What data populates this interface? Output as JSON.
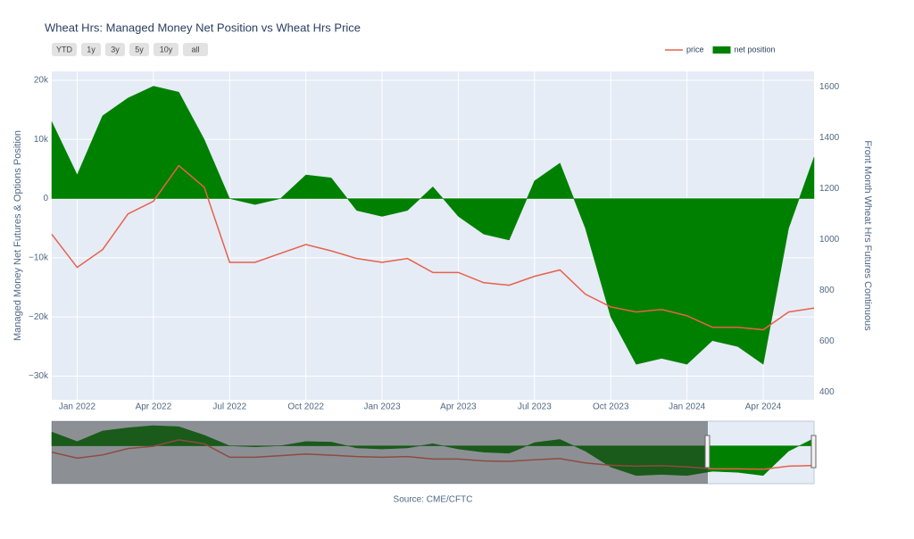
{
  "chart_data": {
    "type": "line_area",
    "title": "Wheat Hrs: Managed Money Net Position vs Wheat Hrs Price",
    "range_buttons": [
      "YTD",
      "1y",
      "3y",
      "5y",
      "10y",
      "all"
    ],
    "y_label": "Managed Money Net Futures & Options Position",
    "y2_label": "Front Month Wheat Hrs Futures Continuous",
    "source": "Source: CME/CFTC",
    "legend": "top-right",
    "grid": true,
    "x": [
      "2021-12",
      "2022-01",
      "2022-02",
      "2022-03",
      "2022-04",
      "2022-05",
      "2022-06",
      "2022-07",
      "2022-08",
      "2022-09",
      "2022-10",
      "2022-11",
      "2022-12",
      "2023-01",
      "2023-02",
      "2023-03",
      "2023-04",
      "2023-05",
      "2023-06",
      "2023-07",
      "2023-08",
      "2023-09",
      "2023-10",
      "2023-11",
      "2023-12",
      "2024-01",
      "2024-02",
      "2024-03",
      "2024-04",
      "2024-05",
      "2024-06"
    ],
    "xlim": [
      "2021-12",
      "2024-06"
    ],
    "xticks": [
      {
        "value": "2022-01",
        "label": "Jan 2022"
      },
      {
        "value": "2022-04",
        "label": "Apr 2022"
      },
      {
        "value": "2022-07",
        "label": "Jul 2022"
      },
      {
        "value": "2022-10",
        "label": "Oct 2022"
      },
      {
        "value": "2023-01",
        "label": "Jan 2023"
      },
      {
        "value": "2023-04",
        "label": "Apr 2023"
      },
      {
        "value": "2023-07",
        "label": "Jul 2023"
      },
      {
        "value": "2023-10",
        "label": "Oct 2023"
      },
      {
        "value": "2024-01",
        "label": "Jan 2024"
      },
      {
        "value": "2024-04",
        "label": "Apr 2024"
      }
    ],
    "ylim": [
      -34000,
      21500
    ],
    "yticks": [
      {
        "value": -30000,
        "label": "−30k"
      },
      {
        "value": -20000,
        "label": "−20k"
      },
      {
        "value": -10000,
        "label": "−10k"
      },
      0,
      {
        "value": 10000,
        "label": "10k"
      },
      {
        "value": 20000,
        "label": "20k"
      }
    ],
    "y2lim": [
      370,
      1660
    ],
    "y2ticks": [
      400,
      600,
      800,
      1000,
      1200,
      1400,
      1600
    ],
    "series": [
      {
        "name": "price",
        "color": "#e8604c",
        "axis": "y2",
        "kind": "line",
        "values": [
          1020,
          890,
          960,
          1100,
          1150,
          1290,
          1205,
          910,
          910,
          945,
          980,
          955,
          925,
          910,
          925,
          870,
          870,
          830,
          820,
          855,
          880,
          785,
          735,
          715,
          725,
          700,
          655,
          655,
          645,
          715,
          730
        ]
      },
      {
        "name": "net position",
        "color": "#008000",
        "kind": "area",
        "values": [
          13000,
          4000,
          14000,
          17000,
          19000,
          18000,
          10000,
          0,
          -1000,
          0,
          4000,
          3500,
          -2000,
          -3000,
          -2000,
          2000,
          -3000,
          -6000,
          -7000,
          3000,
          6000,
          -5000,
          -20000,
          -28000,
          -27000,
          -28000,
          -24000,
          -25000,
          -28000,
          -5000,
          7000
        ]
      }
    ]
  }
}
